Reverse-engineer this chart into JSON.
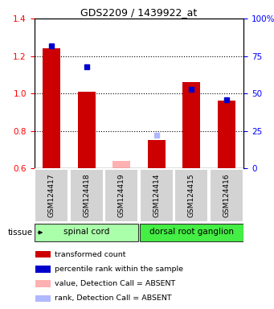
{
  "title": "GDS2209 / 1439922_at",
  "samples": [
    "GSM124417",
    "GSM124418",
    "GSM124419",
    "GSM124414",
    "GSM124415",
    "GSM124416"
  ],
  "red_values": [
    1.24,
    1.01,
    0.64,
    0.75,
    1.06,
    0.96
  ],
  "blue_values": [
    82,
    68,
    null,
    22,
    53,
    46
  ],
  "red_absent": [
    false,
    false,
    true,
    false,
    false,
    false
  ],
  "blue_absent": [
    false,
    false,
    true,
    true,
    false,
    false
  ],
  "ylim_left": [
    0.6,
    1.4
  ],
  "ylim_right": [
    0,
    100
  ],
  "yticks_left": [
    0.6,
    0.8,
    1.0,
    1.2,
    1.4
  ],
  "yticks_right": [
    0,
    25,
    50,
    75,
    100
  ],
  "ytick_labels_right": [
    "0",
    "25",
    "50",
    "75",
    "100%"
  ],
  "groups": [
    {
      "label": "spinal cord",
      "samples": [
        0,
        1,
        2
      ],
      "color": "#aaffaa"
    },
    {
      "label": "dorsal root ganglion",
      "samples": [
        3,
        4,
        5
      ],
      "color": "#44ee44"
    }
  ],
  "tissue_label": "tissue",
  "legend_items": [
    {
      "label": "transformed count",
      "color": "#cc0000"
    },
    {
      "label": "percentile rank within the sample",
      "color": "#0000cc"
    },
    {
      "label": "value, Detection Call = ABSENT",
      "color": "#ffb0b0"
    },
    {
      "label": "rank, Detection Call = ABSENT",
      "color": "#b0b8ff"
    }
  ]
}
